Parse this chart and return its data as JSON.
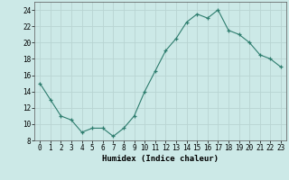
{
  "x": [
    0,
    1,
    2,
    3,
    4,
    5,
    6,
    7,
    8,
    9,
    10,
    11,
    12,
    13,
    14,
    15,
    16,
    17,
    18,
    19,
    20,
    21,
    22,
    23
  ],
  "y": [
    15.0,
    13.0,
    11.0,
    10.5,
    9.0,
    9.5,
    9.5,
    8.5,
    9.5,
    11.0,
    14.0,
    16.5,
    19.0,
    20.5,
    22.5,
    23.5,
    23.0,
    24.0,
    21.5,
    21.0,
    20.0,
    18.5,
    18.0,
    17.0
  ],
  "xlabel": "Humidex (Indice chaleur)",
  "ylim": [
    8,
    25
  ],
  "yticks": [
    8,
    10,
    12,
    14,
    16,
    18,
    20,
    22,
    24
  ],
  "xticks": [
    0,
    1,
    2,
    3,
    4,
    5,
    6,
    7,
    8,
    9,
    10,
    11,
    12,
    13,
    14,
    15,
    16,
    17,
    18,
    19,
    20,
    21,
    22,
    23
  ],
  "line_color": "#2e7d6e",
  "marker_color": "#2e7d6e",
  "bg_color": "#cce9e7",
  "grid_color": "#b8d4d2",
  "outer_bg": "#cce9e7",
  "tick_label_fontsize": 5.5,
  "xlabel_fontsize": 6.5
}
